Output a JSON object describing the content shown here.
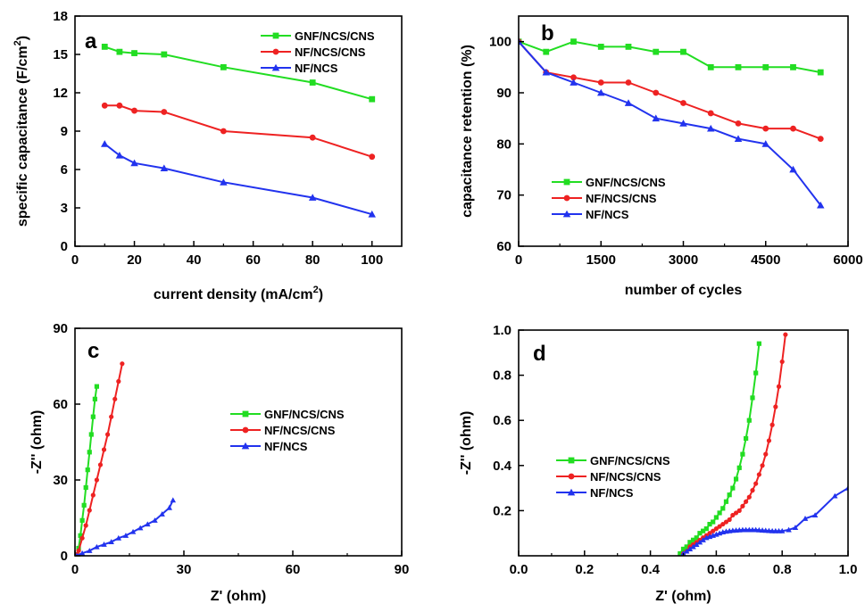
{
  "chart_data": [
    {
      "type": "line",
      "panel_label": "a",
      "xlabel": "current density (mA/cm",
      "xlabel_sup": "2",
      "xlabel_end": ")",
      "ylabel": "specific capacitance (F/cm",
      "ylabel_sup": "2",
      "ylabel_end": ")",
      "xlim": [
        0,
        110
      ],
      "ylim": [
        0,
        18
      ],
      "xticks": [
        0,
        20,
        40,
        60,
        80,
        100
      ],
      "yticks": [
        0,
        3,
        6,
        9,
        12,
        15,
        18
      ],
      "grid": false,
      "legend_position": "top-right",
      "series": [
        {
          "name": "GNF/NCS/CNS",
          "color": "#22dd22",
          "marker": "square",
          "x": [
            10,
            15,
            20,
            30,
            50,
            80,
            100
          ],
          "y": [
            15.6,
            15.2,
            15.1,
            15.0,
            14.0,
            12.8,
            11.5
          ]
        },
        {
          "name": "NF/NCS/CNS",
          "color": "#ee2222",
          "marker": "circle",
          "x": [
            10,
            15,
            20,
            30,
            50,
            80,
            100
          ],
          "y": [
            11.0,
            11.0,
            10.6,
            10.5,
            9.0,
            8.5,
            7.0
          ]
        },
        {
          "name": "NF/NCS",
          "color": "#2233ee",
          "marker": "triangle",
          "x": [
            10,
            15,
            20,
            30,
            50,
            80,
            100
          ],
          "y": [
            8.0,
            7.1,
            6.5,
            6.1,
            5.0,
            3.8,
            2.5
          ]
        }
      ]
    },
    {
      "type": "line",
      "panel_label": "b",
      "xlabel": "number of cycles",
      "ylabel": "capacitance retention (%)",
      "xlim": [
        0,
        6000
      ],
      "ylim": [
        60,
        105
      ],
      "xticks": [
        0,
        1500,
        3000,
        4500,
        6000
      ],
      "yticks": [
        60,
        70,
        80,
        90,
        100
      ],
      "grid": false,
      "legend_position": "center-left",
      "series": [
        {
          "name": "GNF/NCS/CNS",
          "color": "#22dd22",
          "marker": "square",
          "x": [
            0,
            500,
            1000,
            1500,
            2000,
            2500,
            3000,
            3500,
            4000,
            4500,
            5000,
            5500
          ],
          "y": [
            100,
            98,
            100,
            99,
            99,
            98,
            98,
            95,
            95,
            95,
            95,
            94
          ]
        },
        {
          "name": "NF/NCS/CNS",
          "color": "#ee2222",
          "marker": "circle",
          "x": [
            0,
            500,
            1000,
            1500,
            2000,
            2500,
            3000,
            3500,
            4000,
            4500,
            5000,
            5500
          ],
          "y": [
            100,
            94,
            93,
            92,
            92,
            90,
            88,
            86,
            84,
            83,
            83,
            81
          ]
        },
        {
          "name": "NF/NCS",
          "color": "#2233ee",
          "marker": "triangle",
          "x": [
            0,
            500,
            1000,
            1500,
            2000,
            2500,
            3000,
            3500,
            4000,
            4500,
            5000,
            5500
          ],
          "y": [
            100,
            94,
            92,
            90,
            88,
            85,
            84,
            83,
            81,
            80,
            75,
            68
          ]
        }
      ]
    },
    {
      "type": "line",
      "panel_label": "c",
      "xlabel": "Z' (ohm)",
      "ylabel": "-Z'' (ohm)",
      "xlim": [
        0,
        90
      ],
      "ylim": [
        0,
        90
      ],
      "xticks": [
        0,
        30,
        60,
        90
      ],
      "yticks": [
        0,
        30,
        60,
        90
      ],
      "grid": false,
      "legend_position": "center-right",
      "series": [
        {
          "name": "GNF/NCS/CNS",
          "color": "#22dd22",
          "marker": "square",
          "x": [
            0.5,
            1.0,
            1.5,
            2.0,
            2.5,
            3.0,
            3.5,
            4.0,
            4.5,
            5.0,
            5.5,
            6.0
          ],
          "y": [
            0.5,
            3,
            8,
            14,
            20,
            27,
            34,
            41,
            48,
            55,
            62,
            67
          ]
        },
        {
          "name": "NF/NCS/CNS",
          "color": "#ee2222",
          "marker": "circle",
          "x": [
            0.5,
            1.0,
            2.0,
            3.0,
            4.0,
            5.0,
            6.0,
            7.0,
            8.0,
            9.0,
            10.0,
            11.0,
            12.0,
            13.0
          ],
          "y": [
            0.5,
            2,
            7,
            12,
            18,
            24,
            30,
            36,
            42,
            48,
            55,
            62,
            69,
            76
          ]
        },
        {
          "name": "NF/NCS",
          "color": "#2233ee",
          "marker": "triangle",
          "x": [
            0.5,
            2,
            4,
            6,
            8,
            10,
            12,
            14,
            16,
            18,
            20,
            22,
            24,
            26,
            27
          ],
          "y": [
            0.1,
            1,
            2,
            3.5,
            4.5,
            5.5,
            7,
            8,
            9.5,
            11,
            12.5,
            14,
            16.5,
            19,
            22
          ]
        }
      ]
    },
    {
      "type": "line",
      "panel_label": "d",
      "xlabel": "Z' (ohm)",
      "ylabel": "-Z'' (ohm)",
      "xlim": [
        0,
        1.0
      ],
      "ylim": [
        0,
        1.0
      ],
      "xticks": [
        0.0,
        0.2,
        0.4,
        0.6,
        0.8,
        1.0
      ],
      "xtick_labels": [
        "0.0",
        "0.2",
        "0.4",
        "0.6",
        "0.8",
        "1.0"
      ],
      "yticks": [
        0.2,
        0.4,
        0.6,
        0.8,
        1.0
      ],
      "ytick_labels": [
        "0.2",
        "0.4",
        "0.6",
        "0.8",
        "1.0"
      ],
      "grid": false,
      "legend_position": "center-left",
      "series": [
        {
          "name": "GNF/NCS/CNS",
          "color": "#22dd22",
          "marker": "square",
          "x": [
            0.49,
            0.5,
            0.51,
            0.52,
            0.53,
            0.54,
            0.55,
            0.56,
            0.57,
            0.58,
            0.59,
            0.6,
            0.61,
            0.62,
            0.63,
            0.64,
            0.65,
            0.66,
            0.67,
            0.68,
            0.69,
            0.7,
            0.71,
            0.72,
            0.73
          ],
          "y": [
            0.01,
            0.03,
            0.04,
            0.06,
            0.07,
            0.08,
            0.1,
            0.11,
            0.12,
            0.14,
            0.15,
            0.17,
            0.19,
            0.21,
            0.24,
            0.27,
            0.3,
            0.34,
            0.39,
            0.45,
            0.52,
            0.6,
            0.7,
            0.81,
            0.94
          ]
        },
        {
          "name": "NF/NCS/CNS",
          "color": "#ee2222",
          "marker": "circle",
          "x": [
            0.5,
            0.51,
            0.52,
            0.53,
            0.54,
            0.55,
            0.56,
            0.57,
            0.58,
            0.59,
            0.6,
            0.61,
            0.62,
            0.63,
            0.64,
            0.65,
            0.66,
            0.67,
            0.68,
            0.69,
            0.7,
            0.71,
            0.72,
            0.73,
            0.74,
            0.75,
            0.76,
            0.77,
            0.78,
            0.79,
            0.8,
            0.81
          ],
          "y": [
            0.01,
            0.02,
            0.04,
            0.05,
            0.06,
            0.07,
            0.08,
            0.09,
            0.1,
            0.11,
            0.12,
            0.13,
            0.14,
            0.15,
            0.16,
            0.18,
            0.19,
            0.2,
            0.22,
            0.24,
            0.26,
            0.29,
            0.32,
            0.36,
            0.4,
            0.45,
            0.51,
            0.58,
            0.66,
            0.75,
            0.86,
            0.98
          ]
        },
        {
          "name": "NF/NCS",
          "color": "#2233ee",
          "marker": "triangle",
          "x": [
            0.5,
            0.51,
            0.52,
            0.53,
            0.54,
            0.55,
            0.56,
            0.57,
            0.58,
            0.59,
            0.6,
            0.61,
            0.62,
            0.63,
            0.64,
            0.65,
            0.66,
            0.67,
            0.68,
            0.69,
            0.7,
            0.71,
            0.72,
            0.73,
            0.74,
            0.75,
            0.76,
            0.77,
            0.78,
            0.79,
            0.8,
            0.82,
            0.84,
            0.87,
            0.9,
            0.96,
            1.0
          ],
          "y": [
            0.01,
            0.02,
            0.03,
            0.04,
            0.05,
            0.06,
            0.07,
            0.08,
            0.085,
            0.09,
            0.095,
            0.1,
            0.105,
            0.108,
            0.11,
            0.112,
            0.113,
            0.114,
            0.115,
            0.115,
            0.115,
            0.115,
            0.115,
            0.114,
            0.113,
            0.112,
            0.111,
            0.11,
            0.11,
            0.11,
            0.11,
            0.115,
            0.125,
            0.165,
            0.18,
            0.265,
            0.3
          ]
        }
      ]
    }
  ]
}
